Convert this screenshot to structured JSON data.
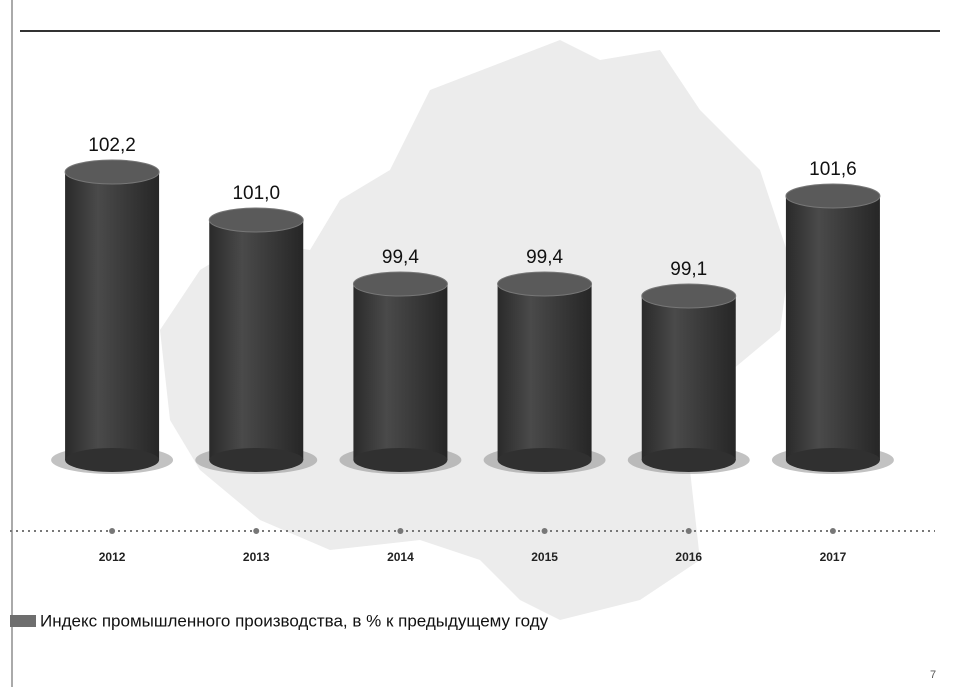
{
  "chart_data": {
    "type": "bar",
    "categories": [
      "2012",
      "2013",
      "2014",
      "2015",
      "2016",
      "2017"
    ],
    "values": [
      102.2,
      101.0,
      99.4,
      99.4,
      99.1,
      101.6
    ],
    "value_labels": [
      "102,2",
      "101,0",
      "99,4",
      "99,4",
      "99,1",
      "101,6"
    ],
    "color": "#3c3c3c",
    "ylim": [
      95,
      103
    ],
    "legend": {
      "name": "Индекс промышленного производства, в % к предыдущему году",
      "color": "#6e6e6e"
    },
    "page_number": "7"
  }
}
